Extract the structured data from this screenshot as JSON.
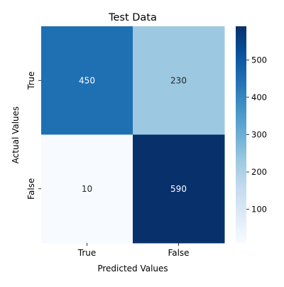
{
  "chart_data": {
    "type": "heatmap",
    "title": "Test Data",
    "xlabel": "Predicted Values",
    "ylabel": "Actual Values",
    "x_categories": [
      "True",
      "False"
    ],
    "y_categories": [
      "True",
      "False"
    ],
    "values": [
      [
        450,
        230
      ],
      [
        10,
        590
      ]
    ],
    "colorbar": {
      "range": [
        10,
        590
      ],
      "ticks": [
        "100",
        "200",
        "300",
        "400",
        "500"
      ],
      "colormap": "Blues"
    },
    "annotations_on": true,
    "grid": false
  }
}
